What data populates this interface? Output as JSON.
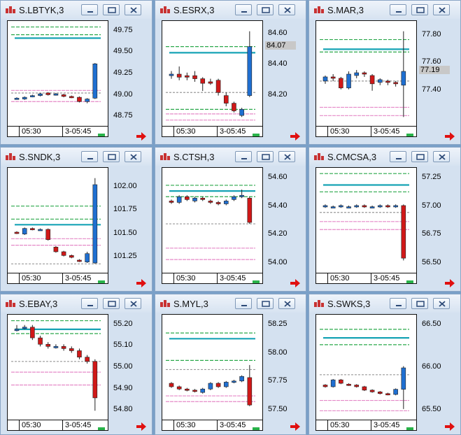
{
  "x_labels": {
    "left": "05:30",
    "right": "3-05:45"
  },
  "colors": {
    "background": "#7aa0c8",
    "up_candle": "#1f6fd1",
    "down_candle": "#d01818",
    "band_green": "#2aa84a",
    "band_pink": "#e58ac8",
    "band_gray": "#999999",
    "ma_line": "#17a3b5"
  },
  "window_controls": [
    "minimize-icon",
    "restore-icon",
    "close-icon"
  ],
  "panels": [
    {
      "title": "S.LBTYK,3",
      "ticks": [
        "49.75",
        "49.50",
        "49.25",
        "49.00",
        "48.75"
      ],
      "current_price": "",
      "ma": 49.67,
      "bands": {
        "green": [
          49.8,
          49.71
        ],
        "pink": [
          49.06,
          48.93
        ],
        "gray": [
          49.03
        ]
      },
      "candles": [
        [
          48.96,
          48.97,
          48.96,
          48.98
        ],
        [
          48.96,
          48.98,
          48.95,
          48.99
        ],
        [
          48.99,
          49.0,
          48.98,
          49.01
        ],
        [
          49.0,
          49.02,
          48.99,
          49.03
        ],
        [
          49.03,
          49.01,
          49.0,
          49.04
        ],
        [
          49.01,
          49.02,
          49.0,
          49.03
        ],
        [
          49.01,
          48.99,
          48.98,
          49.02
        ],
        [
          48.99,
          48.98,
          48.97,
          49.0
        ],
        [
          48.98,
          48.93,
          48.92,
          48.99
        ],
        [
          48.93,
          48.96,
          48.91,
          48.97
        ],
        [
          48.97,
          49.37,
          48.96,
          49.38
        ]
      ]
    },
    {
      "title": "S.ESRX,3",
      "ticks": [
        "84.60",
        "84.40",
        "84.20"
      ],
      "current_price": "84.07",
      "ma": 84.48,
      "bands": {
        "green": [
          84.52,
          84.11
        ],
        "pink": [
          84.08,
          84.04
        ],
        "gray": [
          84.22
        ]
      },
      "candles": [
        [
          84.33,
          84.34,
          84.31,
          84.36
        ],
        [
          84.34,
          84.32,
          84.3,
          84.39
        ],
        [
          84.33,
          84.32,
          84.3,
          84.35
        ],
        [
          84.33,
          84.31,
          84.29,
          84.36
        ],
        [
          84.31,
          84.28,
          84.23,
          84.32
        ],
        [
          84.29,
          84.28,
          84.27,
          84.31
        ],
        [
          84.3,
          84.22,
          84.2,
          84.31
        ],
        [
          84.2,
          84.15,
          84.13,
          84.22
        ],
        [
          84.15,
          84.1,
          84.09,
          84.16
        ],
        [
          84.07,
          84.11,
          84.06,
          84.12
        ],
        [
          84.2,
          84.52,
          84.19,
          84.62
        ]
      ]
    },
    {
      "title": "S.MAR,3",
      "ticks": [
        "77.80",
        "77.60",
        "77.40"
      ],
      "current_price": "77.19",
      "ma": 77.7,
      "bands": {
        "green": [
          77.77,
          77.68
        ],
        "pink": [
          77.28,
          77.22
        ],
        "gray": [
          77.47
        ]
      },
      "candles": [
        [
          77.47,
          77.5,
          77.45,
          77.51
        ],
        [
          77.5,
          77.49,
          77.47,
          77.52
        ],
        [
          77.49,
          77.42,
          77.41,
          77.5
        ],
        [
          77.42,
          77.52,
          77.41,
          77.54
        ],
        [
          77.51,
          77.53,
          77.49,
          77.55
        ],
        [
          77.53,
          77.52,
          77.5,
          77.54
        ],
        [
          77.51,
          77.45,
          77.4,
          77.52
        ],
        [
          77.46,
          77.48,
          77.44,
          77.49
        ],
        [
          77.47,
          77.46,
          77.44,
          77.48
        ],
        [
          77.46,
          77.45,
          77.43,
          77.47
        ],
        [
          77.44,
          77.54,
          77.21,
          77.83
        ]
      ]
    },
    {
      "title": "S.SNDK,3",
      "ticks": [
        "102.00",
        "101.75",
        "101.50",
        "101.25"
      ],
      "current_price": "",
      "ma": 101.6,
      "bands": {
        "green": [
          101.8,
          101.66
        ],
        "pink": [
          101.45,
          101.38
        ],
        "gray": [
          101.18
        ]
      },
      "candles": [
        [
          101.52,
          101.51,
          101.5,
          101.53
        ],
        [
          101.5,
          101.56,
          101.49,
          101.57
        ],
        [
          101.56,
          101.55,
          101.54,
          101.57
        ],
        [
          101.55,
          101.55,
          101.54,
          101.56
        ],
        [
          101.55,
          101.44,
          101.43,
          101.56
        ],
        [
          101.36,
          101.31,
          101.3,
          101.37
        ],
        [
          101.31,
          101.27,
          101.26,
          101.32
        ],
        [
          101.27,
          101.25,
          101.24,
          101.28
        ],
        [
          101.22,
          101.21,
          101.2,
          101.23
        ],
        [
          101.2,
          101.29,
          101.19,
          101.31
        ],
        [
          101.19,
          102.03,
          101.18,
          102.1
        ]
      ]
    },
    {
      "title": "S.CTSH,3",
      "ticks": [
        "54.60",
        "54.40",
        "54.20",
        "54.00"
      ],
      "current_price": "",
      "ma": 54.51,
      "bands": {
        "green": [
          54.55,
          54.47
        ],
        "pink": [
          54.11,
          54.03
        ],
        "gray": [
          54.28
        ]
      },
      "candles": [
        [
          54.44,
          54.43,
          54.42,
          54.45
        ],
        [
          54.43,
          54.47,
          54.42,
          54.48
        ],
        [
          54.47,
          54.45,
          54.44,
          54.48
        ],
        [
          54.44,
          54.46,
          54.43,
          54.47
        ],
        [
          54.46,
          54.45,
          54.44,
          54.47
        ],
        [
          54.44,
          54.43,
          54.42,
          54.45
        ],
        [
          54.43,
          54.42,
          54.41,
          54.44
        ],
        [
          54.42,
          54.44,
          54.41,
          54.45
        ],
        [
          54.45,
          54.47,
          54.44,
          54.48
        ],
        [
          54.47,
          54.48,
          54.46,
          54.52
        ],
        [
          54.46,
          54.29,
          54.28,
          54.47
        ]
      ]
    },
    {
      "title": "S.CMCSA,3",
      "ticks": [
        "57.25",
        "57.00",
        "56.75",
        "56.50"
      ],
      "current_price": "",
      "ma": 57.19,
      "bands": {
        "green": [
          57.29,
          57.13
        ],
        "pink": [
          56.87,
          56.8
        ],
        "gray": [
          56.95
        ]
      },
      "candles": [
        [
          57.0,
          57.01,
          56.99,
          57.02
        ],
        [
          57.0,
          57.0,
          56.99,
          57.01
        ],
        [
          57.0,
          57.01,
          56.99,
          57.02
        ],
        [
          57.0,
          57.0,
          56.99,
          57.01
        ],
        [
          57.0,
          57.01,
          56.99,
          57.02
        ],
        [
          57.01,
          57.0,
          56.99,
          57.02
        ],
        [
          57.0,
          57.0,
          56.99,
          57.01
        ],
        [
          57.0,
          57.01,
          56.99,
          57.02
        ],
        [
          57.01,
          57.0,
          56.99,
          57.02
        ],
        [
          57.0,
          57.01,
          56.99,
          57.02
        ],
        [
          57.01,
          56.55,
          56.53,
          57.02
        ]
      ]
    },
    {
      "title": "S.EBAY,3",
      "ticks": [
        "55.20",
        "55.10",
        "55.00",
        "54.90",
        "54.80"
      ],
      "current_price": "",
      "ma": 55.18,
      "bands": {
        "green": [
          55.22,
          55.16
        ],
        "pink": [
          54.98,
          54.92
        ],
        "gray": [
          55.03
        ]
      },
      "candles": [
        [
          55.18,
          55.18,
          55.17,
          55.2
        ],
        [
          55.19,
          55.19,
          55.18,
          55.2
        ],
        [
          55.19,
          55.14,
          55.13,
          55.2
        ],
        [
          55.14,
          55.11,
          55.1,
          55.15
        ],
        [
          55.11,
          55.1,
          55.09,
          55.12
        ],
        [
          55.1,
          55.1,
          55.09,
          55.11
        ],
        [
          55.1,
          55.09,
          55.08,
          55.11
        ],
        [
          55.09,
          55.08,
          55.07,
          55.1
        ],
        [
          55.08,
          55.05,
          55.04,
          55.09
        ],
        [
          55.05,
          55.03,
          55.02,
          55.06
        ],
        [
          55.03,
          54.86,
          54.8,
          55.04
        ]
      ]
    },
    {
      "title": "S.MYL,3",
      "ticks": [
        "58.25",
        "58.00",
        "57.75",
        "57.50"
      ],
      "current_price": "",
      "ma": 58.13,
      "bands": {
        "green": [
          58.18,
          57.94
        ],
        "pink": [
          57.63,
          57.58
        ],
        "gray": [
          57.86
        ]
      },
      "candles": [
        [
          57.74,
          57.71,
          57.7,
          57.75
        ],
        [
          57.71,
          57.69,
          57.68,
          57.72
        ],
        [
          57.69,
          57.68,
          57.67,
          57.7
        ],
        [
          57.68,
          57.67,
          57.66,
          57.69
        ],
        [
          57.66,
          57.69,
          57.65,
          57.7
        ],
        [
          57.69,
          57.74,
          57.68,
          57.75
        ],
        [
          57.74,
          57.71,
          57.7,
          57.75
        ],
        [
          57.71,
          57.75,
          57.7,
          57.76
        ],
        [
          57.75,
          57.76,
          57.74,
          57.77
        ],
        [
          57.76,
          57.8,
          57.75,
          57.81
        ],
        [
          57.79,
          57.55,
          57.54,
          57.9
        ]
      ]
    },
    {
      "title": "S.SWKS,3",
      "ticks": [
        "66.50",
        "66.00",
        "65.50"
      ],
      "current_price": "",
      "ma": 66.35,
      "bands": {
        "green": [
          66.45,
          66.27
        ],
        "pink": [
          65.62,
          65.5
        ],
        "gray": [
          65.92
        ]
      },
      "candles": [
        [
          65.8,
          65.78,
          65.77,
          65.81
        ],
        [
          65.78,
          65.86,
          65.77,
          65.87
        ],
        [
          65.86,
          65.82,
          65.81,
          65.87
        ],
        [
          65.81,
          65.8,
          65.79,
          65.82
        ],
        [
          65.8,
          65.78,
          65.77,
          65.81
        ],
        [
          65.78,
          65.74,
          65.73,
          65.79
        ],
        [
          65.74,
          65.72,
          65.71,
          65.75
        ],
        [
          65.72,
          65.7,
          65.69,
          65.73
        ],
        [
          65.7,
          65.69,
          65.68,
          65.71
        ],
        [
          65.69,
          65.75,
          65.68,
          65.76
        ],
        [
          65.75,
          66.0,
          65.52,
          66.02
        ]
      ]
    }
  ]
}
